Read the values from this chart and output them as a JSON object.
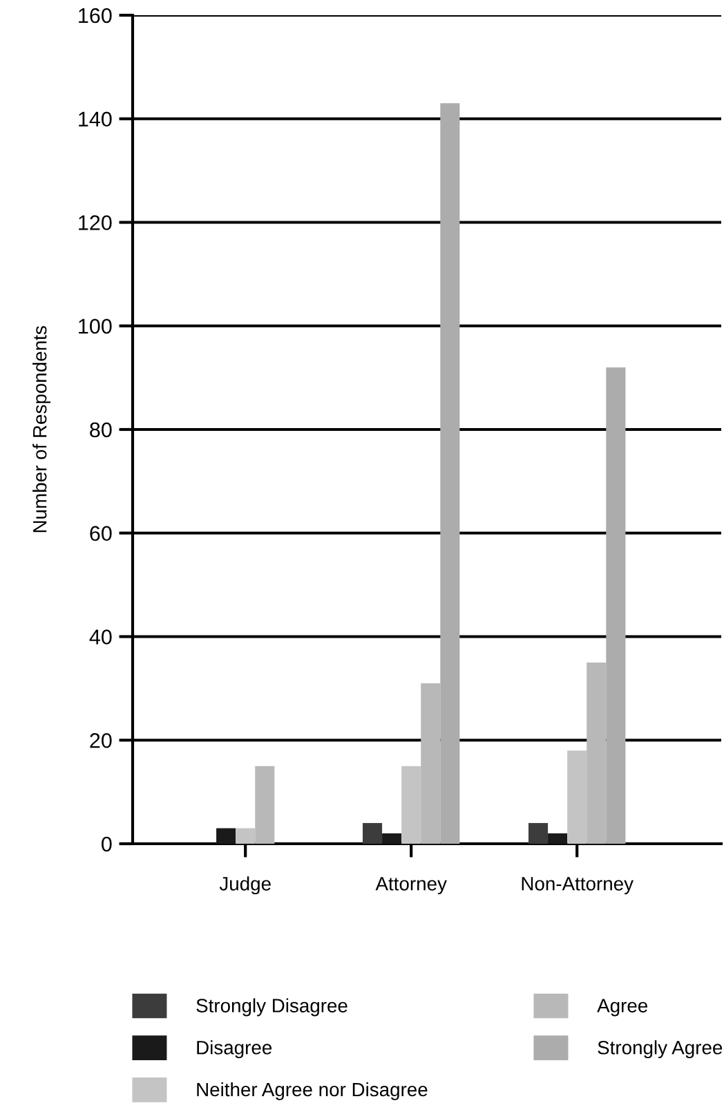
{
  "chart_data": {
    "type": "bar",
    "ylabel": "Number of Respondents",
    "categories": [
      "Judge",
      "Attorney",
      "Non-Attorney"
    ],
    "series": [
      {
        "name": "Strongly Disagree",
        "color": "#3c3c3c",
        "values": [
          0,
          4,
          4
        ]
      },
      {
        "name": "Disagree",
        "color": "#1a1a1a",
        "values": [
          3,
          2,
          2
        ]
      },
      {
        "name": "Neither Agree nor Disagree",
        "color": "#c4c4c4",
        "values": [
          3,
          15,
          18
        ]
      },
      {
        "name": "Agree",
        "color": "#b8b8b8",
        "values": [
          15,
          31,
          35
        ]
      },
      {
        "name": "Strongly Agree",
        "color": "#acacac",
        "values": [
          0,
          143,
          92
        ]
      }
    ],
    "ylim": [
      0,
      160
    ],
    "yticks": [
      0,
      20,
      40,
      60,
      80,
      100,
      120,
      140,
      160
    ],
    "grid": "y",
    "legend": "bottom"
  }
}
